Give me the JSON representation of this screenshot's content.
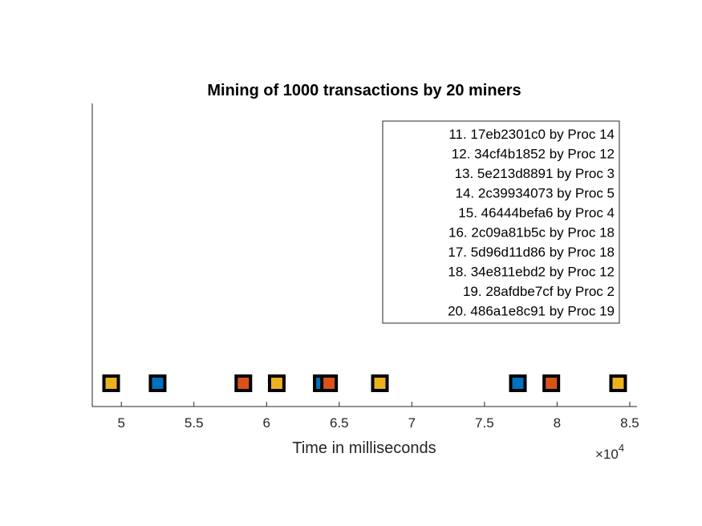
{
  "chart_data": {
    "type": "scatter",
    "title": "Mining of 1000 transactions by 20 miners",
    "xlabel": "Time in milliseconds",
    "ylabel": "",
    "x_multiplier_label": "×10",
    "x_multiplier_exponent": "4",
    "xlim": [
      4.8,
      8.55
    ],
    "xticks": [
      5,
      5.5,
      6,
      6.5,
      7,
      7.5,
      8,
      8.5
    ],
    "xtick_labels": [
      "5",
      "5.5",
      "6",
      "6.5",
      "7",
      "7.5",
      "8",
      "8.5"
    ],
    "grid": false,
    "legend_position": "top-right",
    "marker": "square",
    "marker_edge_color": "#000000",
    "points": [
      {
        "x": 4.93,
        "color": "#EDB120"
      },
      {
        "x": 5.25,
        "color": "#0072BD"
      },
      {
        "x": 5.84,
        "color": "#D95319"
      },
      {
        "x": 6.07,
        "color": "#EDB120"
      },
      {
        "x": 6.38,
        "color": "#0072BD"
      },
      {
        "x": 6.43,
        "color": "#D95319"
      },
      {
        "x": 6.78,
        "color": "#EDB120"
      },
      {
        "x": 7.73,
        "color": "#0072BD"
      },
      {
        "x": 7.96,
        "color": "#D95319"
      },
      {
        "x": 8.42,
        "color": "#EDB120"
      }
    ],
    "legend": [
      "11. 17eb2301c0 by Proc 14",
      "12. 34cf4b1852 by Proc 12",
      "13. 5e213d8891 by Proc 3",
      "14. 2c39934073 by Proc 5",
      "15. 46444befa6 by Proc 4",
      "16. 2c09a81b5c by Proc 18",
      "17. 5d96d11d86 by Proc 18",
      "18. 34e811ebd2 by Proc 12",
      "19. 28afdbe7cf by Proc 2",
      "20. 486a1e8c91 by Proc 19"
    ]
  }
}
